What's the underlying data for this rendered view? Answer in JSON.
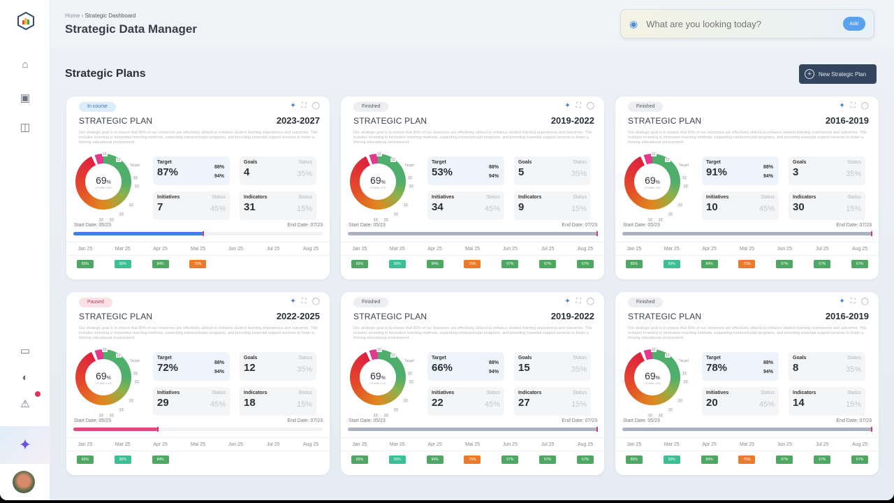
{
  "breadcrumb": {
    "home": "Home",
    "current": "Strategic Dashboard"
  },
  "header": {
    "title": "Strategic Data Manager"
  },
  "ask": {
    "placeholder": "What are you looking today?",
    "button": "Ask!"
  },
  "section": {
    "title": "Strategic Plans",
    "new_button": "New Strategic Plan"
  },
  "colors": {
    "green": "#4ea863",
    "teal": "#3cbf95",
    "orange": "#ea7a2c",
    "blue": "#3b82e0",
    "pink": "#e04a7a",
    "gray": "#aab3c2"
  },
  "plan_label": "STRATEGIC PLAN",
  "description": "Our strategic goal is to ensure that 80% of our resources are effectively utilized to enhance student learning experiences and outcomes. This includes investing in innovative teaching methods, expanding extracurricular programs, and providing essential support services to foster a thriving educational environment.",
  "labels": {
    "target": "Target",
    "goals": "Goals",
    "initiatives": "Initiatives",
    "indicators": "Indicators",
    "status": "Status",
    "start": "Start Date: 05/23",
    "end": "End Date: 07/23",
    "donut_sub": "LP With 12%",
    "donut_target": "Target"
  },
  "months": [
    "Jan 25",
    "Mar 25",
    "Apr 25",
    "Mai 25",
    "Jun 25",
    "Jul 25",
    "Aug 25"
  ],
  "plans": [
    {
      "status": "In course",
      "badge_bg": "#dcecfb",
      "badge_fg": "#3a6fb5",
      "years": "2023-2027",
      "donut": "69",
      "target": "87%",
      "t1": "88%",
      "t2": "94%",
      "goals": "4",
      "goals_status": "35%",
      "initiatives": "7",
      "init_status": "45%",
      "indicators": "31",
      "ind_status": "15%",
      "progress": 52,
      "bar_color": "blue",
      "chips": [
        [
          "83%",
          "green"
        ],
        [
          "50%",
          "teal"
        ],
        [
          "84%",
          "green"
        ],
        [
          "75%",
          "orange"
        ]
      ]
    },
    {
      "status": "Finished",
      "badge_bg": "#eceef1",
      "badge_fg": "#555",
      "years": "2019-2022",
      "donut": "69",
      "target": "53%",
      "t1": "88%",
      "t2": "94%",
      "goals": "5",
      "goals_status": "35%",
      "initiatives": "34",
      "init_status": "45%",
      "indicators": "9",
      "ind_status": "15%",
      "progress": 100,
      "bar_color": "gray",
      "chips": [
        [
          "83%",
          "green"
        ],
        [
          "50%",
          "teal"
        ],
        [
          "84%",
          "green"
        ],
        [
          "75%",
          "orange"
        ],
        [
          "67%",
          "green"
        ],
        [
          "67%",
          "green"
        ],
        [
          "67%",
          "green"
        ]
      ]
    },
    {
      "status": "Finished",
      "badge_bg": "#eceef1",
      "badge_fg": "#555",
      "years": "2016-2019",
      "donut": "69",
      "target": "91%",
      "t1": "88%",
      "t2": "94%",
      "goals": "3",
      "goals_status": "35%",
      "initiatives": "10",
      "init_status": "45%",
      "indicators": "30",
      "ind_status": "15%",
      "progress": 100,
      "bar_color": "gray",
      "chips": [
        [
          "83%",
          "green"
        ],
        [
          "50%",
          "teal"
        ],
        [
          "84%",
          "green"
        ],
        [
          "75%",
          "orange"
        ],
        [
          "67%",
          "green"
        ],
        [
          "67%",
          "green"
        ],
        [
          "67%",
          "green"
        ]
      ]
    },
    {
      "status": "Paused",
      "badge_bg": "#fbe1e6",
      "badge_fg": "#c0385a",
      "years": "2022-2025",
      "donut": "69",
      "target": "72%",
      "t1": "88%",
      "t2": "94%",
      "goals": "12",
      "goals_status": "35%",
      "initiatives": "29",
      "init_status": "45%",
      "indicators": "18",
      "ind_status": "15%",
      "progress": 34,
      "bar_color": "pink",
      "chips": [
        [
          "83%",
          "green"
        ],
        [
          "50%",
          "teal"
        ],
        [
          "84%",
          "green"
        ]
      ]
    },
    {
      "status": "Finished",
      "badge_bg": "#eceef1",
      "badge_fg": "#555",
      "years": "2019-2022",
      "donut": "69",
      "target": "66%",
      "t1": "88%",
      "t2": "94%",
      "goals": "15",
      "goals_status": "35%",
      "initiatives": "22",
      "init_status": "45%",
      "indicators": "27",
      "ind_status": "15%",
      "progress": 100,
      "bar_color": "gray",
      "chips": [
        [
          "83%",
          "green"
        ],
        [
          "50%",
          "teal"
        ],
        [
          "84%",
          "green"
        ],
        [
          "75%",
          "orange"
        ],
        [
          "67%",
          "green"
        ],
        [
          "67%",
          "green"
        ],
        [
          "67%",
          "green"
        ]
      ]
    },
    {
      "status": "Finished",
      "badge_bg": "#eceef1",
      "badge_fg": "#555",
      "years": "2016-2019",
      "donut": "69",
      "target": "78%",
      "t1": "88%",
      "t2": "94%",
      "goals": "8",
      "goals_status": "35%",
      "initiatives": "20",
      "init_status": "45%",
      "indicators": "14",
      "ind_status": "15%",
      "progress": 100,
      "bar_color": "gray",
      "chips": [
        [
          "83%",
          "green"
        ],
        [
          "50%",
          "teal"
        ],
        [
          "84%",
          "green"
        ],
        [
          "75%",
          "orange"
        ],
        [
          "67%",
          "green"
        ],
        [
          "67%",
          "green"
        ],
        [
          "67%",
          "green"
        ]
      ]
    }
  ]
}
